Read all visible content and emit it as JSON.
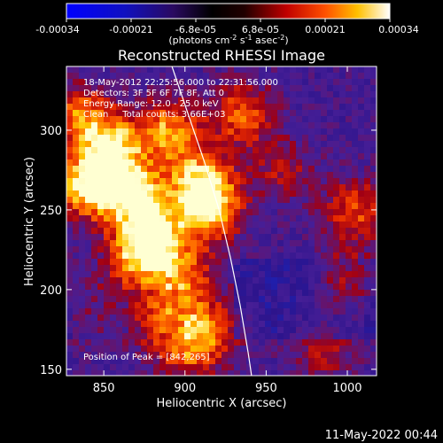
{
  "colorbar": {
    "ticks": [
      "-0.00034",
      "-0.00021",
      "-6.8e-05",
      "6.8e-05",
      "0.00021",
      "0.00034"
    ],
    "units_main": "(photons cm",
    "units_exp1": "-2",
    "units_mid": " s",
    "units_exp2": "-1",
    "units_end": " asec",
    "units_exp3": "-2",
    "units_close": ")"
  },
  "chart_data": {
    "type": "heatmap",
    "title": "Reconstructed RHESSI Image",
    "xlabel": "Heliocentric X (arcsec)",
    "ylabel": "Heliocentric Y (arcsec)",
    "xlim": [
      827,
      1018
    ],
    "ylim": [
      146,
      340
    ],
    "xticks": [
      "850",
      "900",
      "950",
      "1000"
    ],
    "yticks": [
      "150",
      "200",
      "250",
      "300"
    ],
    "colorbar_range": [
      -0.00034,
      0.00034
    ],
    "annotations": {
      "time_range": "18-May-2012 22:25:56.000 to 22:31:56.000",
      "detectors": "Detectors: 3F 5F 6F 7F 8F, Att 0",
      "energy": "Energy Range: 12.0 - 25.0 keV",
      "algorithm": "Clean     Total counts: 3.66E+03",
      "peak": "Position of Peak = [842,265]"
    },
    "limb_curve": [
      [
        892,
        340
      ],
      [
        902,
        310
      ],
      [
        912,
        280
      ],
      [
        921,
        250
      ],
      [
        928,
        220
      ],
      [
        934,
        190
      ],
      [
        939,
        160
      ],
      [
        941,
        146
      ]
    ],
    "hotspots": [
      {
        "x": 842,
        "y": 265,
        "intensity": 1.0
      },
      {
        "x": 870,
        "y": 260,
        "intensity": 0.85
      },
      {
        "x": 855,
        "y": 290,
        "intensity": 0.8
      },
      {
        "x": 890,
        "y": 300,
        "intensity": 0.7
      },
      {
        "x": 880,
        "y": 235,
        "intensity": 0.75
      },
      {
        "x": 910,
        "y": 270,
        "intensity": 0.7
      },
      {
        "x": 915,
        "y": 250,
        "intensity": 0.85
      },
      {
        "x": 935,
        "y": 310,
        "intensity": 0.6
      },
      {
        "x": 870,
        "y": 220,
        "intensity": 0.6
      },
      {
        "x": 900,
        "y": 210,
        "intensity": 0.55
      },
      {
        "x": 885,
        "y": 185,
        "intensity": 0.6
      },
      {
        "x": 915,
        "y": 175,
        "intensity": 0.55
      },
      {
        "x": 900,
        "y": 160,
        "intensity": 0.45
      },
      {
        "x": 960,
        "y": 275,
        "intensity": 0.35
      },
      {
        "x": 1005,
        "y": 250,
        "intensity": 0.55
      },
      {
        "x": 1000,
        "y": 205,
        "intensity": 0.45
      },
      {
        "x": 985,
        "y": 160,
        "intensity": 0.35
      },
      {
        "x": 845,
        "y": 185,
        "intensity": 0.3
      },
      {
        "x": 835,
        "y": 310,
        "intensity": 0.6
      }
    ]
  },
  "footer": {
    "timestamp": "11-May-2022 00:44"
  }
}
